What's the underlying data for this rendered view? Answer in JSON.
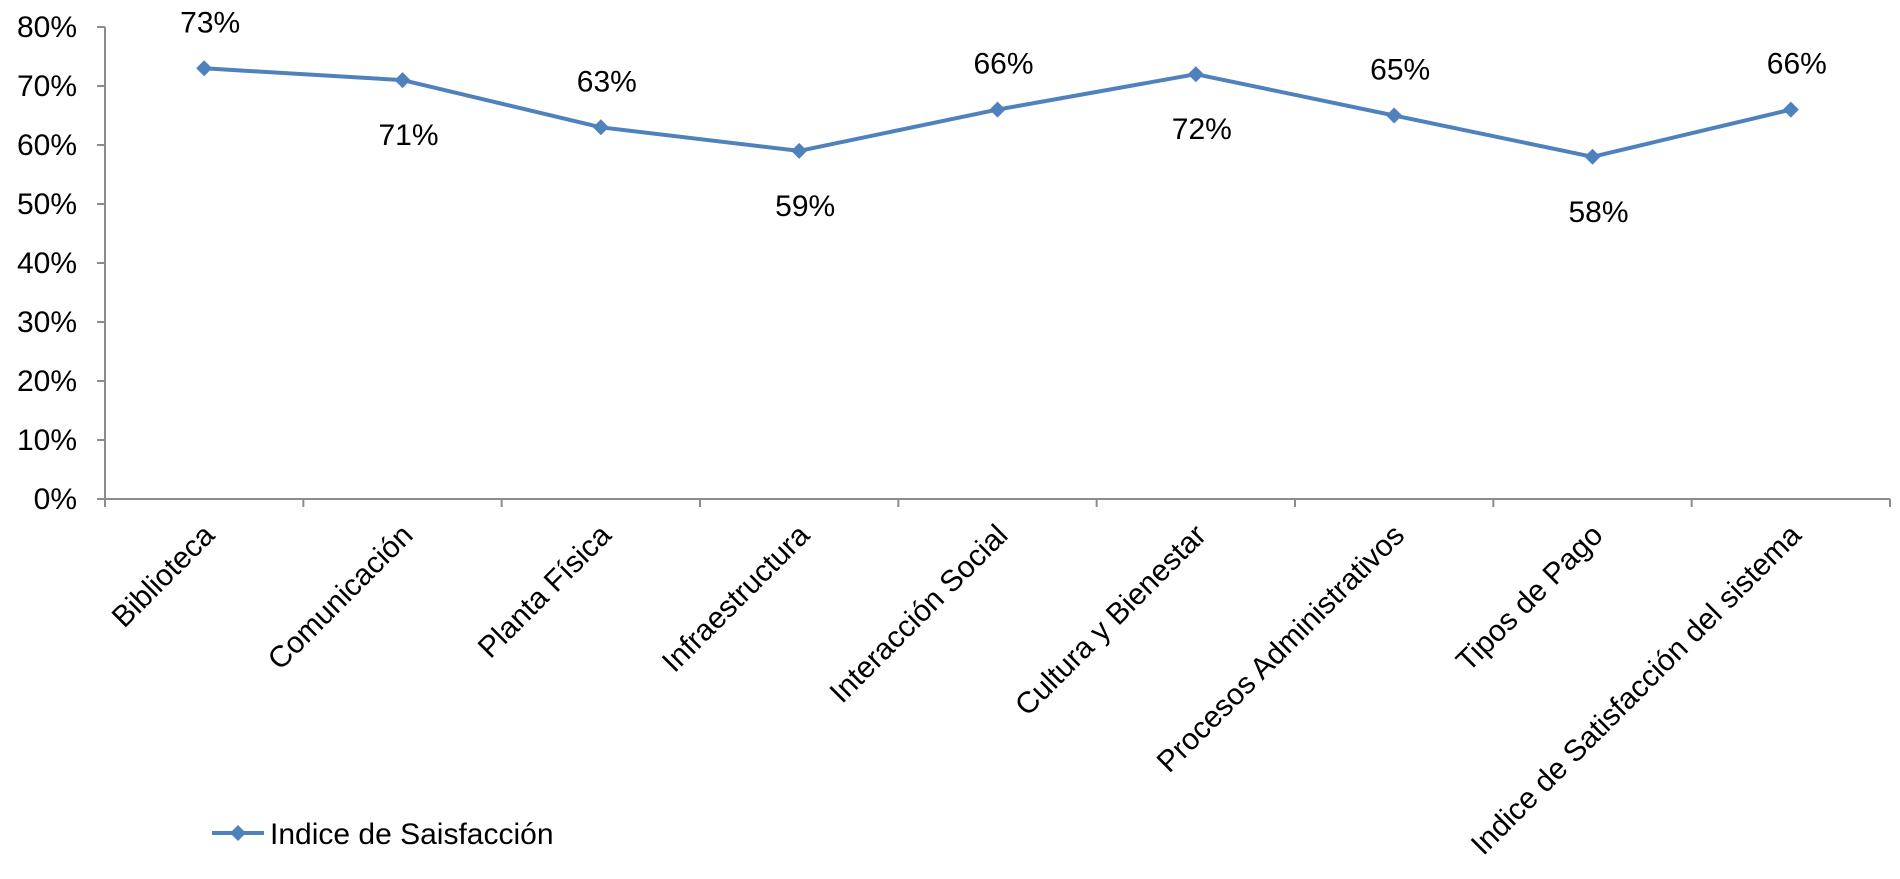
{
  "chart_data": {
    "type": "line",
    "title": "",
    "xlabel": "",
    "ylabel": "",
    "categories": [
      "Biblioteca",
      "Comunicación",
      "Planta Física",
      "Infraestructura",
      "Interacción Social",
      "Cultura y Bienestar",
      "Procesos Administrativos",
      "Tipos de Pago",
      "Indice de Satisfacción del sistema"
    ],
    "series": [
      {
        "name": "Indice de Saisfacción",
        "values": [
          0.73,
          0.71,
          0.63,
          0.59,
          0.66,
          0.72,
          0.65,
          0.58,
          0.66
        ],
        "data_labels": [
          "73%",
          "71%",
          "63%",
          "59%",
          "66%",
          "72%",
          "65%",
          "58%",
          "66%"
        ],
        "color": "#4f81bd",
        "marker": "diamond"
      }
    ],
    "ylim": [
      0,
      0.8
    ],
    "yticks": [
      0,
      0.1,
      0.2,
      0.3,
      0.4,
      0.5,
      0.6,
      0.7,
      0.8
    ],
    "ytick_labels": [
      "0%",
      "10%",
      "20%",
      "30%",
      "40%",
      "50%",
      "60%",
      "70%",
      "80%"
    ],
    "grid": false,
    "legend_position": "bottom-left"
  }
}
